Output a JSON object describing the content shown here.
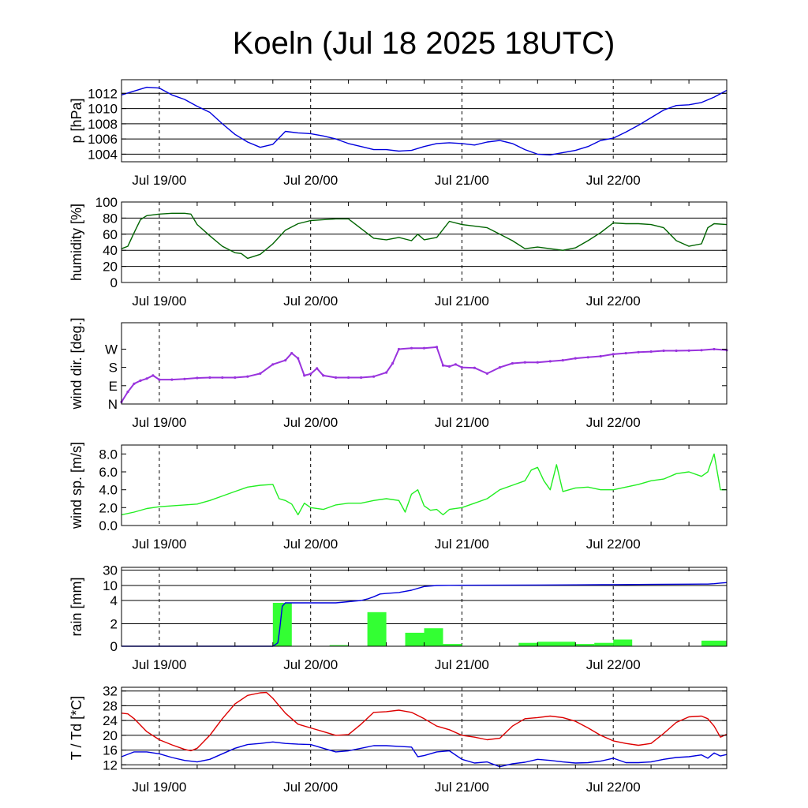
{
  "title": "Koeln (Jul 18 2025 18UTC)",
  "x_ticks": [
    {
      "t": 6,
      "label": "Jul 19/00"
    },
    {
      "t": 30,
      "label": "Jul 20/00"
    },
    {
      "t": 54,
      "label": "Jul 21/00"
    },
    {
      "t": 78,
      "label": "Jul 22/00"
    }
  ],
  "x_range_hours": [
    0,
    96
  ],
  "colors": {
    "pressure": "#0000dd",
    "humidity": "#006400",
    "wind_dir": "#9933dd",
    "wind_speed": "#22ee22",
    "rain_bar": "#33ff33",
    "rain_sum": "#0000dd",
    "temperature": "#dd0000",
    "dewpoint": "#0000dd"
  },
  "chart_data": [
    {
      "type": "line",
      "id": "pressure",
      "ylabel": "p [hPa]",
      "ylim": [
        1003,
        1013.8
      ],
      "yticks": [
        1004,
        1006,
        1008,
        1010,
        1012
      ],
      "ytick_labels": [
        "1004",
        "1006",
        "1008",
        "1010",
        "1012"
      ],
      "grid": true,
      "series": [
        {
          "x": [
            0,
            2,
            4,
            6,
            8,
            10,
            12,
            14,
            16,
            18,
            20,
            22,
            24,
            26,
            28,
            30,
            32,
            34,
            36,
            38,
            40,
            42,
            44,
            46,
            48,
            50,
            52,
            54,
            56,
            58,
            60,
            62,
            64,
            66,
            68,
            70,
            72,
            74,
            76,
            78,
            80,
            82,
            84,
            86,
            88,
            90,
            92,
            94,
            96
          ],
          "y": [
            1011.8,
            1012.3,
            1012.8,
            1012.7,
            1011.8,
            1011.2,
            1010.3,
            1009.5,
            1008.0,
            1006.6,
            1005.6,
            1004.9,
            1005.3,
            1007.0,
            1006.8,
            1006.7,
            1006.4,
            1006.0,
            1005.4,
            1005.0,
            1004.6,
            1004.6,
            1004.4,
            1004.5,
            1005.0,
            1005.4,
            1005.5,
            1005.4,
            1005.2,
            1005.6,
            1005.8,
            1005.4,
            1004.6,
            1004.0,
            1003.9,
            1004.2,
            1004.5,
            1005.0,
            1005.8,
            1006.1,
            1006.9,
            1007.8,
            1008.8,
            1009.8,
            1010.4,
            1010.5,
            1010.8,
            1011.5,
            1012.4
          ]
        }
      ]
    },
    {
      "type": "line",
      "id": "humidity",
      "ylabel": "humidity [%]",
      "ylim": [
        0,
        100
      ],
      "yticks": [
        0,
        20,
        40,
        60,
        80,
        100
      ],
      "ytick_labels": [
        "0",
        "20",
        "40",
        "60",
        "80",
        "100"
      ],
      "grid": true,
      "series": [
        {
          "x": [
            0,
            1,
            2,
            3,
            4,
            6,
            8,
            10,
            11,
            12,
            14,
            16,
            18,
            19,
            20,
            22,
            24,
            26,
            28,
            30,
            32,
            34,
            36,
            38,
            40,
            42,
            44,
            46,
            47,
            48,
            50,
            52,
            54,
            56,
            58,
            60,
            62,
            64,
            66,
            68,
            70,
            72,
            74,
            76,
            78,
            80,
            82,
            84,
            86,
            88,
            90,
            92,
            93,
            94,
            96
          ],
          "y": [
            42,
            45,
            62,
            78,
            83,
            85,
            86,
            86,
            85,
            72,
            58,
            45,
            37,
            36,
            30,
            35,
            48,
            65,
            73,
            77,
            78,
            79,
            79,
            67,
            55,
            53,
            56,
            52,
            60,
            53,
            56,
            76,
            72,
            70,
            68,
            60,
            52,
            42,
            44,
            42,
            40,
            43,
            52,
            62,
            74,
            73,
            73,
            72,
            68,
            52,
            45,
            48,
            68,
            73,
            72
          ]
        }
      ]
    },
    {
      "type": "scatter",
      "id": "wind_dir",
      "ylabel": "wind dir. [deg.]",
      "ylim": [
        0,
        400
      ],
      "yticks": [
        0,
        90,
        180,
        270
      ],
      "ytick_labels": [
        "N",
        "E",
        "S",
        "W"
      ],
      "grid": false,
      "series": [
        {
          "x": [
            0,
            1,
            2,
            3,
            4,
            5,
            6,
            8,
            10,
            12,
            14,
            16,
            18,
            20,
            22,
            24,
            26,
            27,
            28,
            29,
            30,
            31,
            32,
            34,
            36,
            38,
            40,
            42,
            43,
            44,
            46,
            48,
            50,
            51,
            52,
            53,
            54,
            56,
            58,
            60,
            62,
            64,
            66,
            68,
            70,
            72,
            74,
            76,
            78,
            80,
            82,
            84,
            86,
            88,
            90,
            92,
            94,
            96
          ],
          "y": [
            10,
            60,
            100,
            115,
            125,
            140,
            120,
            120,
            123,
            128,
            130,
            130,
            130,
            135,
            150,
            195,
            215,
            250,
            225,
            140,
            148,
            175,
            140,
            130,
            130,
            130,
            135,
            155,
            200,
            270,
            275,
            275,
            280,
            190,
            185,
            195,
            180,
            178,
            150,
            180,
            200,
            205,
            205,
            210,
            215,
            225,
            230,
            235,
            245,
            250,
            255,
            258,
            262,
            262,
            263,
            265,
            270,
            265
          ]
        }
      ]
    },
    {
      "type": "line",
      "id": "wind_speed",
      "ylabel": "wind sp. [m/s]",
      "ylim": [
        0,
        9
      ],
      "yticks": [
        0,
        2,
        4,
        6,
        8
      ],
      "ytick_labels": [
        "0.0",
        "2.0",
        "4.0",
        "6.0",
        "8.0"
      ],
      "grid": false,
      "series": [
        {
          "x": [
            0,
            2,
            4,
            6,
            8,
            10,
            12,
            14,
            16,
            18,
            20,
            22,
            24,
            25,
            26,
            27,
            28,
            29,
            30,
            32,
            34,
            36,
            38,
            40,
            42,
            44,
            45,
            46,
            47,
            48,
            49,
            50,
            51,
            52,
            54,
            56,
            58,
            60,
            62,
            64,
            65,
            66,
            67,
            68,
            69,
            70,
            72,
            74,
            76,
            78,
            80,
            82,
            84,
            86,
            88,
            90,
            92,
            93,
            94,
            95,
            96
          ],
          "y": [
            1.2,
            1.5,
            1.9,
            2.1,
            2.2,
            2.3,
            2.4,
            2.8,
            3.3,
            3.8,
            4.3,
            4.5,
            4.6,
            3.0,
            2.8,
            2.4,
            1.2,
            2.5,
            2.0,
            1.8,
            2.3,
            2.5,
            2.5,
            2.8,
            3.0,
            2.8,
            1.5,
            3.5,
            4.0,
            2.2,
            1.7,
            1.8,
            1.2,
            1.8,
            2.0,
            2.5,
            3.0,
            4.0,
            4.5,
            5.0,
            6.2,
            6.5,
            5.0,
            4.0,
            6.8,
            3.8,
            4.2,
            4.3,
            4.0,
            4.0,
            4.3,
            4.6,
            5.0,
            5.2,
            5.8,
            6.0,
            5.5,
            6.0,
            8.0,
            4.0,
            4.0
          ]
        }
      ]
    },
    {
      "type": "bar",
      "id": "rain",
      "ylabel": "rain [mm]",
      "ylim": [
        0,
        36
      ],
      "yticks": [
        0,
        2,
        4,
        10,
        30
      ],
      "ytick_labels": [
        "0",
        "2",
        "4",
        "10",
        "30"
      ],
      "grid": true,
      "bars": [
        {
          "start": 24,
          "end": 27,
          "value": 3.8
        },
        {
          "start": 33,
          "end": 36,
          "value": 0.1
        },
        {
          "start": 39,
          "end": 42,
          "value": 3.0
        },
        {
          "start": 45,
          "end": 48,
          "value": 1.2
        },
        {
          "start": 48,
          "end": 51,
          "value": 1.6
        },
        {
          "start": 51,
          "end": 54,
          "value": 0.2
        },
        {
          "start": 63,
          "end": 66,
          "value": 0.3
        },
        {
          "start": 66,
          "end": 72,
          "value": 0.4
        },
        {
          "start": 72,
          "end": 75,
          "value": 0.2
        },
        {
          "start": 75,
          "end": 78,
          "value": 0.3
        },
        {
          "start": 78,
          "end": 81,
          "value": 0.6
        },
        {
          "start": 92,
          "end": 96,
          "value": 0.5
        }
      ],
      "series": [
        {
          "x": [
            0,
            24,
            24.8,
            25.1,
            25.5,
            26,
            30,
            34,
            36,
            38,
            39,
            40,
            41,
            42,
            44,
            46,
            48,
            50,
            52,
            54,
            60,
            66,
            72,
            78,
            84,
            90,
            93,
            94,
            95,
            96
          ],
          "y": [
            0,
            0,
            0.3,
            1.5,
            3.5,
            3.8,
            3.8,
            3.8,
            3.9,
            4.0,
            4.6,
            5.5,
            6.6,
            6.8,
            7.2,
            8.1,
            9.6,
            10.0,
            10.2,
            10.3,
            10.4,
            10.6,
            10.8,
            11.1,
            11.4,
            11.7,
            11.8,
            12.4,
            13.2,
            13.8
          ]
        }
      ]
    },
    {
      "type": "line",
      "id": "temperature",
      "ylabel": "T / Td [*C]",
      "ylim": [
        11,
        33
      ],
      "yticks": [
        12,
        16,
        20,
        24,
        28,
        32
      ],
      "ytick_labels": [
        "12",
        "16",
        "20",
        "24",
        "28",
        "32"
      ],
      "grid": true,
      "series": [
        {
          "x": [
            0,
            1,
            2,
            4,
            6,
            8,
            10,
            11,
            12,
            14,
            16,
            18,
            20,
            22,
            23,
            24,
            26,
            28,
            30,
            32,
            34,
            36,
            38,
            40,
            42,
            44,
            46,
            48,
            50,
            52,
            54,
            56,
            58,
            60,
            62,
            64,
            66,
            68,
            70,
            72,
            74,
            76,
            78,
            80,
            82,
            84,
            86,
            88,
            90,
            92,
            93,
            94,
            95,
            96
          ],
          "y": [
            26,
            25.8,
            24.5,
            21,
            18.8,
            17.4,
            16.2,
            15.8,
            16.5,
            20,
            24.5,
            28.5,
            30.8,
            31.5,
            31.6,
            30,
            26,
            23,
            22,
            21,
            20,
            20.2,
            23,
            26.2,
            26.4,
            26.8,
            26.2,
            24.5,
            22.5,
            21.5,
            20,
            19.5,
            18.8,
            19.2,
            22.5,
            24.5,
            24.8,
            25.2,
            24.8,
            23.8,
            22,
            20,
            18.5,
            17.8,
            17.3,
            17.8,
            20.5,
            23.5,
            25,
            25.2,
            24.5,
            22.5,
            19.5,
            20.3
          ]
        },
        {
          "x": [
            0,
            2,
            4,
            6,
            8,
            10,
            12,
            14,
            16,
            18,
            20,
            22,
            24,
            26,
            28,
            30,
            32,
            34,
            36,
            38,
            40,
            42,
            44,
            46,
            47,
            48,
            50,
            52,
            54,
            56,
            58,
            60,
            62,
            64,
            66,
            68,
            70,
            72,
            74,
            76,
            78,
            80,
            82,
            84,
            86,
            88,
            90,
            92,
            93,
            94,
            95,
            96
          ],
          "y": [
            14.2,
            15.5,
            15.5,
            15,
            14,
            13.2,
            12.8,
            13.5,
            15,
            16.5,
            17.5,
            17.8,
            18.2,
            17.8,
            17.6,
            17.5,
            16.5,
            15.5,
            15.8,
            16.5,
            17.2,
            17.2,
            17,
            16.8,
            14.2,
            14.5,
            15.5,
            15.8,
            13.5,
            12.5,
            12.8,
            11.5,
            12.3,
            12.7,
            13.5,
            13.2,
            12.8,
            12.5,
            12.6,
            13,
            13.8,
            12.6,
            12.6,
            12.8,
            13.5,
            14,
            14.2,
            14.7,
            13.8,
            15.2,
            14.4,
            14.8
          ]
        }
      ]
    }
  ]
}
